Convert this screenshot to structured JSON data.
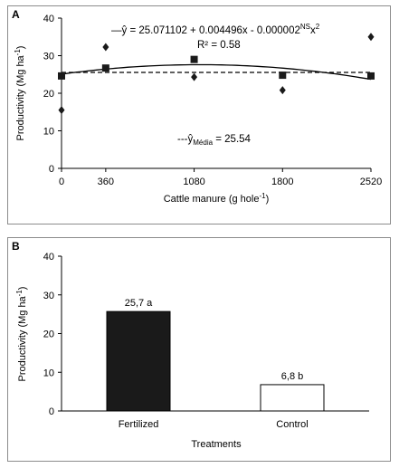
{
  "chart_data": [
    {
      "panel_label": "A",
      "type": "scatter",
      "xlabel": "Cattle manure (g hole",
      "xlabel_sup": "-1",
      "xlabel_end": ")",
      "ylabel": "Productivity (Mg ha",
      "ylabel_sup": "-1",
      "ylabel_end": ")",
      "xticks": [
        "0",
        "360",
        "1080",
        "1800",
        "2520"
      ],
      "x_positions": [
        0,
        360,
        1080,
        1800,
        2520
      ],
      "yticks": [
        "0",
        "10",
        "20",
        "30",
        "40"
      ],
      "xlim": [
        0,
        2520
      ],
      "ylim": [
        0,
        40
      ],
      "series": [
        {
          "marker": "diamond",
          "x": [
            0,
            360,
            1080,
            1800,
            2520
          ],
          "y": [
            15.5,
            32.3,
            24.3,
            20.8,
            35.0
          ]
        },
        {
          "marker": "square",
          "x": [
            0,
            360,
            1080,
            1800,
            2520
          ],
          "y": [
            24.6,
            26.7,
            29.0,
            24.8,
            24.6
          ]
        }
      ],
      "fit": {
        "a": 25.071102,
        "b": 0.004496,
        "c": -2e-06,
        "style": "solid"
      },
      "mean_line": {
        "value": 25.54,
        "style": "dashed"
      },
      "equation": {
        "prefix": "—ŷ = 25.071102 + 0.004496x - 0.000002",
        "sup": "NS",
        "suffix": "x",
        "sup2": "2",
        "r2": "R² = 0.58"
      },
      "mean_label": {
        "prefix": "---ŷ",
        "sub": "Média",
        "suffix": " = 25.54"
      },
      "grid": false
    },
    {
      "panel_label": "B",
      "type": "bar",
      "categories": [
        "Fertilized",
        "Control"
      ],
      "values": [
        25.7,
        6.8
      ],
      "data_labels": [
        "25,7 a",
        "6,8 b"
      ],
      "fills": [
        "#1a1a1a",
        "#ffffff"
      ],
      "xlabel": "Treatments",
      "ylabel": "Productivity (Mg ha",
      "ylabel_sup": "-1",
      "ylabel_end": ")",
      "yticks": [
        "0",
        "10",
        "20",
        "30",
        "40"
      ],
      "ylim": [
        0,
        40
      ],
      "grid": false
    }
  ]
}
